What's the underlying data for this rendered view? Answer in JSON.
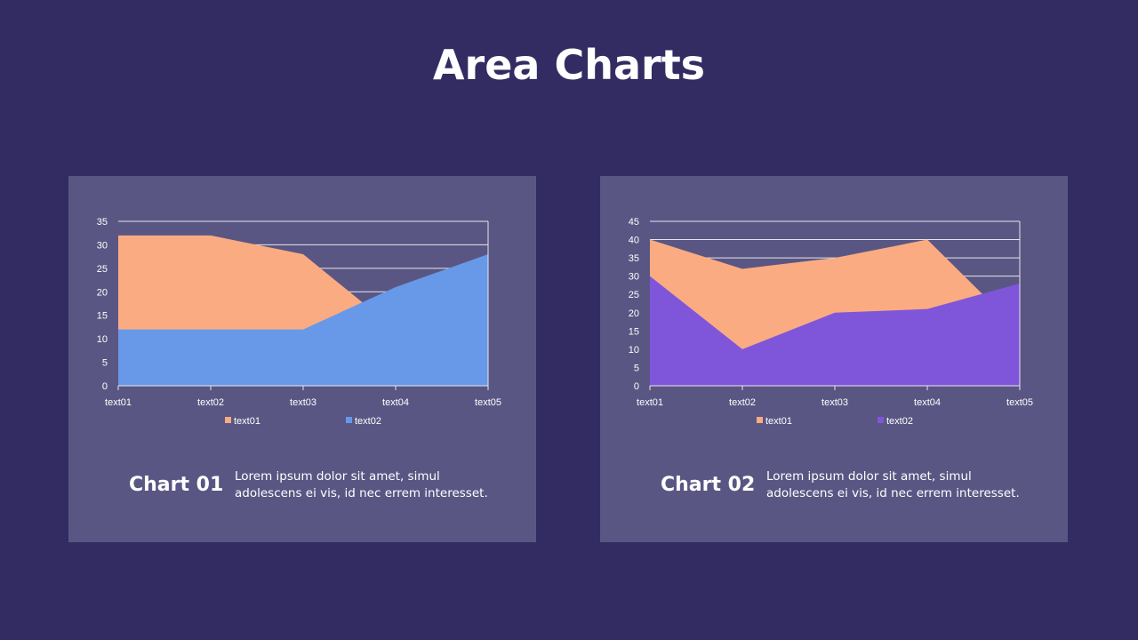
{
  "title": "Area Charts",
  "panels": [
    {
      "caption": "Chart 01",
      "description": "Lorem ipsum dolor sit amet, simul adolescens ei vis, id nec errem  interesset."
    },
    {
      "caption": "Chart 02",
      "description": "Lorem ipsum dolor sit amet, simul adolescens ei vis, id nec errem  interesset."
    }
  ],
  "chart_data": [
    {
      "type": "area",
      "categories": [
        "text01",
        "text02",
        "text03",
        "text04",
        "text05"
      ],
      "series": [
        {
          "name": "text01",
          "values": [
            32,
            32,
            28,
            12,
            10
          ],
          "color": "#fbab82"
        },
        {
          "name": "text02",
          "values": [
            12,
            12,
            12,
            21,
            28
          ],
          "color": "#6799e8"
        }
      ],
      "ylim": [
        0,
        35
      ],
      "yticks": [
        0,
        5,
        10,
        15,
        20,
        25,
        30,
        35
      ],
      "grid": true,
      "legend": "bottom"
    },
    {
      "type": "area",
      "categories": [
        "text01",
        "text02",
        "text03",
        "text04",
        "text05"
      ],
      "series": [
        {
          "name": "text01",
          "values": [
            40,
            32,
            35,
            40,
            15
          ],
          "color": "#fbab82"
        },
        {
          "name": "text02",
          "values": [
            30,
            10,
            20,
            21,
            28
          ],
          "color": "#7f56d9"
        }
      ],
      "ylim": [
        0,
        45
      ],
      "yticks": [
        0,
        5,
        10,
        15,
        20,
        25,
        30,
        35,
        40,
        45
      ],
      "grid": true,
      "legend": "bottom"
    }
  ]
}
